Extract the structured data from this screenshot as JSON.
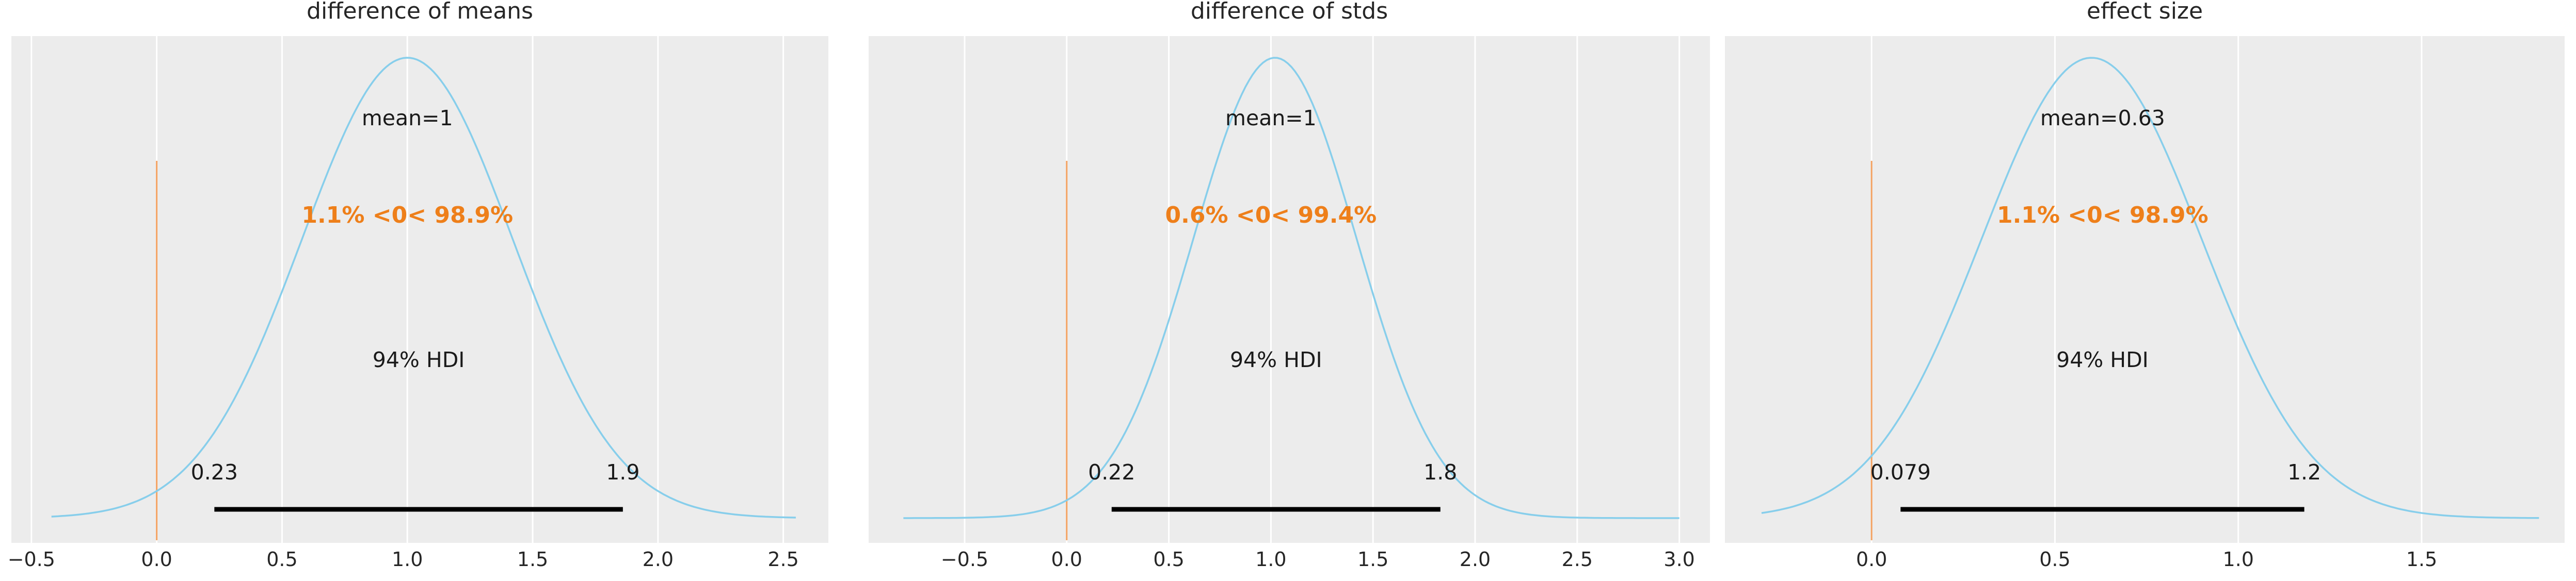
{
  "colors": {
    "axes_bg": "#ececec",
    "grid": "#ffffff",
    "kde_line": "#87ceeb",
    "ref_line": "#f4a261",
    "ref_text": "#ee7f1a",
    "hdi_bar": "#000000",
    "text": "#262626"
  },
  "chart_data": [
    {
      "type": "line",
      "title": "difference of means",
      "xlim": [
        -0.58,
        2.68
      ],
      "ylim": [
        0,
        1.0
      ],
      "xticks": [
        -0.5,
        0.0,
        0.5,
        1.0,
        1.5,
        2.0,
        2.5
      ],
      "xtick_labels": [
        "−0.5",
        "0.0",
        "0.5",
        "1.0",
        "1.5",
        "2.0",
        "2.5"
      ],
      "kde_range": [
        -0.42,
        2.55
      ],
      "kde_mean": 1.0,
      "kde_sd": 0.42,
      "point_estimate_label": "mean=1",
      "point_estimate_x": 1.0,
      "ref_val": 0.0,
      "ref_label": "1.1% <0< 98.9%",
      "hdi_prob_label": "94% HDI",
      "hdi_low": 0.23,
      "hdi_high": 1.86,
      "hdi_low_label": "0.23",
      "hdi_high_label": "1.9"
    },
    {
      "type": "line",
      "title": "difference of stds",
      "xlim": [
        -0.97,
        3.15
      ],
      "ylim": [
        0,
        1.0
      ],
      "xticks": [
        -0.5,
        0.0,
        0.5,
        1.0,
        1.5,
        2.0,
        2.5,
        3.0
      ],
      "xtick_labels": [
        "−0.5",
        "0.0",
        "0.5",
        "1.0",
        "1.5",
        "2.0",
        "2.5",
        "3.0"
      ],
      "kde_range": [
        -0.8,
        3.0
      ],
      "kde_mean": 1.02,
      "kde_sd": 0.4,
      "point_estimate_label": "mean=1",
      "point_estimate_x": 1.0,
      "ref_val": 0.0,
      "ref_label": "0.6% <0< 99.4%",
      "hdi_prob_label": "94% HDI",
      "hdi_low": 0.22,
      "hdi_high": 1.83,
      "hdi_low_label": "0.22",
      "hdi_high_label": "1.8"
    },
    {
      "type": "line",
      "title": "effect size",
      "xlim": [
        -0.4,
        1.89
      ],
      "ylim": [
        0,
        1.0
      ],
      "xticks": [
        0.0,
        0.5,
        1.0,
        1.5
      ],
      "xtick_labels": [
        "0.0",
        "0.5",
        "1.0",
        "1.5"
      ],
      "kde_range": [
        -0.3,
        1.82
      ],
      "kde_mean": 0.6,
      "kde_sd": 0.3,
      "point_estimate_label": "mean=0.63",
      "point_estimate_x": 0.63,
      "ref_val": 0.0,
      "ref_label": "1.1% <0< 98.9%",
      "hdi_prob_label": "94% HDI",
      "hdi_low": 0.079,
      "hdi_high": 1.18,
      "hdi_low_label": "0.079",
      "hdi_high_label": "1.2"
    }
  ]
}
